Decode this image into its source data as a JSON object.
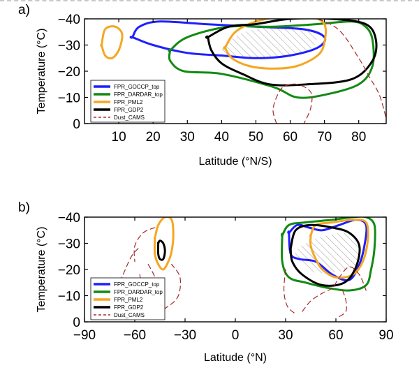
{
  "chart_data": [
    {
      "panel_label": "a)",
      "type": "contour",
      "xlabel": "Latitude (°N/S)",
      "ylabel": "Temperature (°C)",
      "xlim": [
        0,
        88
      ],
      "ylim": [
        0,
        -40
      ],
      "xticks": [
        10,
        20,
        30,
        40,
        50,
        60,
        70,
        80
      ],
      "yticks": [
        -40,
        -30,
        -20,
        -10,
        0
      ],
      "ytick_labels": [
        "−40",
        "−30",
        "−20",
        "−10",
        "0"
      ],
      "hatch_region": [
        [
          40,
          -27
        ],
        [
          45,
          -34
        ],
        [
          55,
          -37
        ],
        [
          66,
          -36
        ],
        [
          68,
          -33
        ],
        [
          64,
          -27
        ],
        [
          50,
          -25
        ]
      ],
      "legend": {
        "placement": "lower-left",
        "entries": [
          {
            "label": "FPR_GOCCP_top",
            "color": "#1f1fff",
            "style": "solid"
          },
          {
            "label": "FPR_DARDAR_top",
            "color": "#138a13",
            "style": "solid"
          },
          {
            "label": "FPR_PML2",
            "color": "#f5a623",
            "style": "solid"
          },
          {
            "label": "FPR_GDP2",
            "color": "#000000",
            "style": "solid"
          },
          {
            "label": "Dust_CAMS",
            "color": "#a52a2a",
            "style": "dashed"
          }
        ]
      },
      "series": [
        {
          "name": "FPR_GOCCP_top",
          "color": "#1f1fff",
          "width": 3,
          "dash": false,
          "closed": true,
          "points": [
            [
              14,
              -33
            ],
            [
              16,
              -37
            ],
            [
              22,
              -39
            ],
            [
              35,
              -38
            ],
            [
              50,
              -37
            ],
            [
              64,
              -36
            ],
            [
              70,
              -33
            ],
            [
              68,
              -29
            ],
            [
              60,
              -26
            ],
            [
              50,
              -25
            ],
            [
              40,
              -26
            ],
            [
              30,
              -27
            ],
            [
              20,
              -30
            ],
            [
              14,
              -33
            ]
          ]
        },
        {
          "name": "FPR_DARDAR_top",
          "color": "#138a13",
          "width": 3,
          "dash": false,
          "closed": true,
          "points": [
            [
              25,
              -28
            ],
            [
              30,
              -33
            ],
            [
              42,
              -37
            ],
            [
              55,
              -37
            ],
            [
              68,
              -38
            ],
            [
              78,
              -39
            ],
            [
              82,
              -37
            ],
            [
              84,
              -32
            ],
            [
              84,
              -22
            ],
            [
              80,
              -15
            ],
            [
              70,
              -11
            ],
            [
              62,
              -10
            ],
            [
              55,
              -14
            ],
            [
              40,
              -19
            ],
            [
              29,
              -20
            ],
            [
              25,
              -24
            ],
            [
              25,
              -28
            ]
          ]
        },
        {
          "name": "FPR_PML2",
          "color": "#f5a623",
          "width": 3,
          "dash": false,
          "closed": true,
          "points": [
            [
              5,
              -30
            ],
            [
              6,
              -36
            ],
            [
              9,
              -37
            ],
            [
              11,
              -34
            ],
            [
              10,
              -28
            ],
            [
              8,
              -25
            ],
            [
              6,
              -26
            ],
            [
              5,
              -30
            ]
          ]
        },
        {
          "name": "FPR_PML2",
          "color": "#f5a623",
          "width": 3,
          "dash": false,
          "closed": true,
          "points": [
            [
              41,
              -29
            ],
            [
              44,
              -35
            ],
            [
              50,
              -39
            ],
            [
              58,
              -41
            ],
            [
              62,
              -41
            ],
            [
              66,
              -41
            ],
            [
              70,
              -38
            ],
            [
              70,
              -31
            ],
            [
              68,
              -26
            ],
            [
              62,
              -22
            ],
            [
              55,
              -21
            ],
            [
              48,
              -22
            ],
            [
              43,
              -25
            ],
            [
              41,
              -29
            ]
          ]
        },
        {
          "name": "FPR_GDP2",
          "color": "#000000",
          "width": 3,
          "dash": false,
          "closed": true,
          "points": [
            [
              36,
              -33
            ],
            [
              42,
              -37
            ],
            [
              50,
              -38
            ],
            [
              60,
              -40
            ],
            [
              72,
              -40
            ],
            [
              82,
              -38
            ],
            [
              85,
              -32
            ],
            [
              84,
              -24
            ],
            [
              78,
              -17
            ],
            [
              65,
              -15
            ],
            [
              54,
              -15
            ],
            [
              46,
              -19
            ],
            [
              40,
              -23
            ],
            [
              37,
              -28
            ],
            [
              36,
              -33
            ]
          ]
        },
        {
          "name": "Dust_CAMS",
          "color": "#a52a2a",
          "width": 1.2,
          "dash": true,
          "closed": false,
          "points": [
            [
              66,
              -41
            ],
            [
              74,
              -36
            ],
            [
              80,
              -25
            ],
            [
              83,
              -18
            ],
            [
              86,
              -11
            ],
            [
              88,
              -2
            ]
          ]
        },
        {
          "name": "Dust_CAMS",
          "color": "#a52a2a",
          "width": 1.2,
          "dash": true,
          "closed": false,
          "points": [
            [
              56,
              0
            ],
            [
              55,
              -5
            ],
            [
              56,
              -10
            ],
            [
              58,
              -14
            ],
            [
              62,
              -15
            ],
            [
              66,
              -12
            ],
            [
              66,
              -6
            ],
            [
              64,
              0
            ]
          ]
        }
      ]
    },
    {
      "panel_label": "b)",
      "type": "contour",
      "xlabel": "Latitude (°N)",
      "ylabel": "Temperature (°C)",
      "xlim": [
        -90,
        90
      ],
      "ylim": [
        0,
        -40
      ],
      "xticks": [
        -90,
        -60,
        -30,
        0,
        30,
        60,
        90
      ],
      "xtick_labels": [
        "−90",
        "−60",
        "−30",
        "0",
        "30",
        "60",
        "90"
      ],
      "yticks": [
        -40,
        -30,
        -20,
        -10,
        0
      ],
      "ytick_labels": [
        "−40",
        "−30",
        "−20",
        "−10",
        "0"
      ],
      "hatch_region": [
        [
          36,
          -27
        ],
        [
          45,
          -31
        ],
        [
          55,
          -33
        ],
        [
          68,
          -34
        ],
        [
          74,
          -30
        ],
        [
          72,
          -22
        ],
        [
          60,
          -19
        ],
        [
          46,
          -19
        ],
        [
          38,
          -23
        ]
      ],
      "legend": {
        "placement": "lower-left",
        "entries": [
          {
            "label": "FPR_GOCCP_top",
            "color": "#1f1fff",
            "style": "solid"
          },
          {
            "label": "FPR_DARDAR_top",
            "color": "#138a13",
            "style": "solid"
          },
          {
            "label": "FPR_PML2",
            "color": "#f5a623",
            "style": "solid"
          },
          {
            "label": "FPR_GDP2",
            "color": "#000000",
            "style": "solid"
          },
          {
            "label": "Dust_CAMS",
            "color": "#a52a2a",
            "style": "dashed"
          }
        ]
      },
      "series": [
        {
          "name": "FPR_DARDAR_top",
          "color": "#138a13",
          "width": 3,
          "dash": false,
          "closed": true,
          "points": [
            [
              28,
              -33
            ],
            [
              32,
              -37
            ],
            [
              42,
              -38
            ],
            [
              58,
              -39
            ],
            [
              70,
              -40
            ],
            [
              78,
              -40
            ],
            [
              83,
              -37
            ],
            [
              83,
              -28
            ],
            [
              81,
              -20
            ],
            [
              78,
              -14
            ],
            [
              68,
              -12
            ],
            [
              55,
              -13
            ],
            [
              42,
              -15
            ],
            [
              32,
              -17
            ],
            [
              28,
              -23
            ],
            [
              28,
              -33
            ]
          ]
        },
        {
          "name": "FPR_GOCCP_top",
          "color": "#1f1fff",
          "width": 3,
          "dash": false,
          "closed": true,
          "points": [
            [
              32,
              -34
            ],
            [
              37,
              -37
            ],
            [
              44,
              -36
            ],
            [
              52,
              -35
            ],
            [
              62,
              -37
            ],
            [
              72,
              -39
            ],
            [
              78,
              -37
            ],
            [
              77,
              -29
            ],
            [
              74,
              -22
            ],
            [
              68,
              -16
            ],
            [
              58,
              -18
            ],
            [
              48,
              -23
            ],
            [
              38,
              -24
            ],
            [
              33,
              -26
            ],
            [
              32,
              -34
            ]
          ]
        },
        {
          "name": "FPR_PML2",
          "color": "#f5a623",
          "width": 3,
          "dash": false,
          "closed": true,
          "points": [
            [
              -48,
              -32
            ],
            [
              -46,
              -37
            ],
            [
              -42,
              -40
            ],
            [
              -38,
              -39
            ],
            [
              -37,
              -33
            ],
            [
              -38,
              -27
            ],
            [
              -40,
              -23
            ],
            [
              -43,
              -20
            ],
            [
              -46,
              -22
            ],
            [
              -48,
              -26
            ],
            [
              -48,
              -32
            ]
          ]
        },
        {
          "name": "FPR_PML2",
          "color": "#f5a623",
          "width": 3,
          "dash": false,
          "closed": true,
          "points": [
            [
              45,
              -33
            ],
            [
              48,
              -37
            ],
            [
              58,
              -38
            ],
            [
              70,
              -39
            ],
            [
              78,
              -38
            ],
            [
              79,
              -31
            ],
            [
              76,
              -23
            ],
            [
              70,
              -18
            ],
            [
              60,
              -17
            ],
            [
              52,
              -20
            ],
            [
              48,
              -24
            ],
            [
              45,
              -29
            ],
            [
              45,
              -33
            ]
          ]
        },
        {
          "name": "FPR_GDP2",
          "color": "#000000",
          "width": 3,
          "dash": false,
          "closed": true,
          "points": [
            [
              -46,
              -30
            ],
            [
              -45,
              -31
            ],
            [
              -43,
              -30
            ],
            [
              -42,
              -27
            ],
            [
              -43,
              -24
            ],
            [
              -45,
              -24
            ],
            [
              -46,
              -26
            ],
            [
              -46,
              -30
            ]
          ]
        },
        {
          "name": "FPR_GDP2",
          "color": "#000000",
          "width": 3,
          "dash": false,
          "closed": true,
          "points": [
            [
              33,
              -28
            ],
            [
              36,
              -35
            ],
            [
              45,
              -37
            ],
            [
              58,
              -36
            ],
            [
              68,
              -34
            ],
            [
              74,
              -29
            ],
            [
              72,
              -21
            ],
            [
              65,
              -15
            ],
            [
              52,
              -14
            ],
            [
              40,
              -18
            ],
            [
              34,
              -23
            ],
            [
              33,
              -28
            ]
          ]
        },
        {
          "name": "Dust_CAMS",
          "color": "#a52a2a",
          "width": 1.2,
          "dash": true,
          "closed": false,
          "points": [
            [
              -58,
              -28
            ],
            [
              -62,
              -25
            ],
            [
              -67,
              -18
            ],
            [
              -72,
              -10
            ],
            [
              -74,
              -2
            ]
          ]
        },
        {
          "name": "Dust_CAMS",
          "color": "#a52a2a",
          "width": 1.2,
          "dash": true,
          "closed": false,
          "points": [
            [
              -48,
              -36
            ],
            [
              -55,
              -34
            ],
            [
              -60,
              -29
            ],
            [
              -60,
              -23
            ]
          ]
        },
        {
          "name": "Dust_CAMS",
          "color": "#a52a2a",
          "width": 1.2,
          "dash": true,
          "closed": false,
          "points": [
            [
              -57,
              -18
            ],
            [
              -55,
              -11
            ],
            [
              -48,
              -4
            ],
            [
              -40,
              -6
            ],
            [
              -34,
              -10
            ],
            [
              -33,
              -17
            ],
            [
              -38,
              -22
            ]
          ]
        },
        {
          "name": "Dust_CAMS",
          "color": "#a52a2a",
          "width": 1.2,
          "dash": true,
          "closed": false,
          "points": [
            [
              -52,
              -22
            ],
            [
              -48,
              -17
            ],
            [
              -46,
              -11
            ]
          ]
        },
        {
          "name": "Dust_CAMS",
          "color": "#a52a2a",
          "width": 1.2,
          "dash": true,
          "closed": false,
          "points": [
            [
              30,
              -20
            ],
            [
              29,
              -12
            ],
            [
              31,
              -6
            ],
            [
              36,
              -3
            ]
          ]
        },
        {
          "name": "Dust_CAMS",
          "color": "#a52a2a",
          "width": 1.2,
          "dash": true,
          "closed": false,
          "points": [
            [
              40,
              -4
            ],
            [
              45,
              -8
            ],
            [
              52,
              -11
            ],
            [
              58,
              -13
            ],
            [
              62,
              -17
            ],
            [
              68,
              -21
            ],
            [
              74,
              -18
            ],
            [
              78,
              -12
            ]
          ]
        },
        {
          "name": "Dust_CAMS",
          "color": "#a52a2a",
          "width": 1.2,
          "dash": true,
          "closed": false,
          "points": [
            [
              64,
              -12
            ],
            [
              66,
              -8
            ],
            [
              66,
              -4
            ],
            [
              62,
              -2
            ]
          ]
        }
      ]
    }
  ]
}
